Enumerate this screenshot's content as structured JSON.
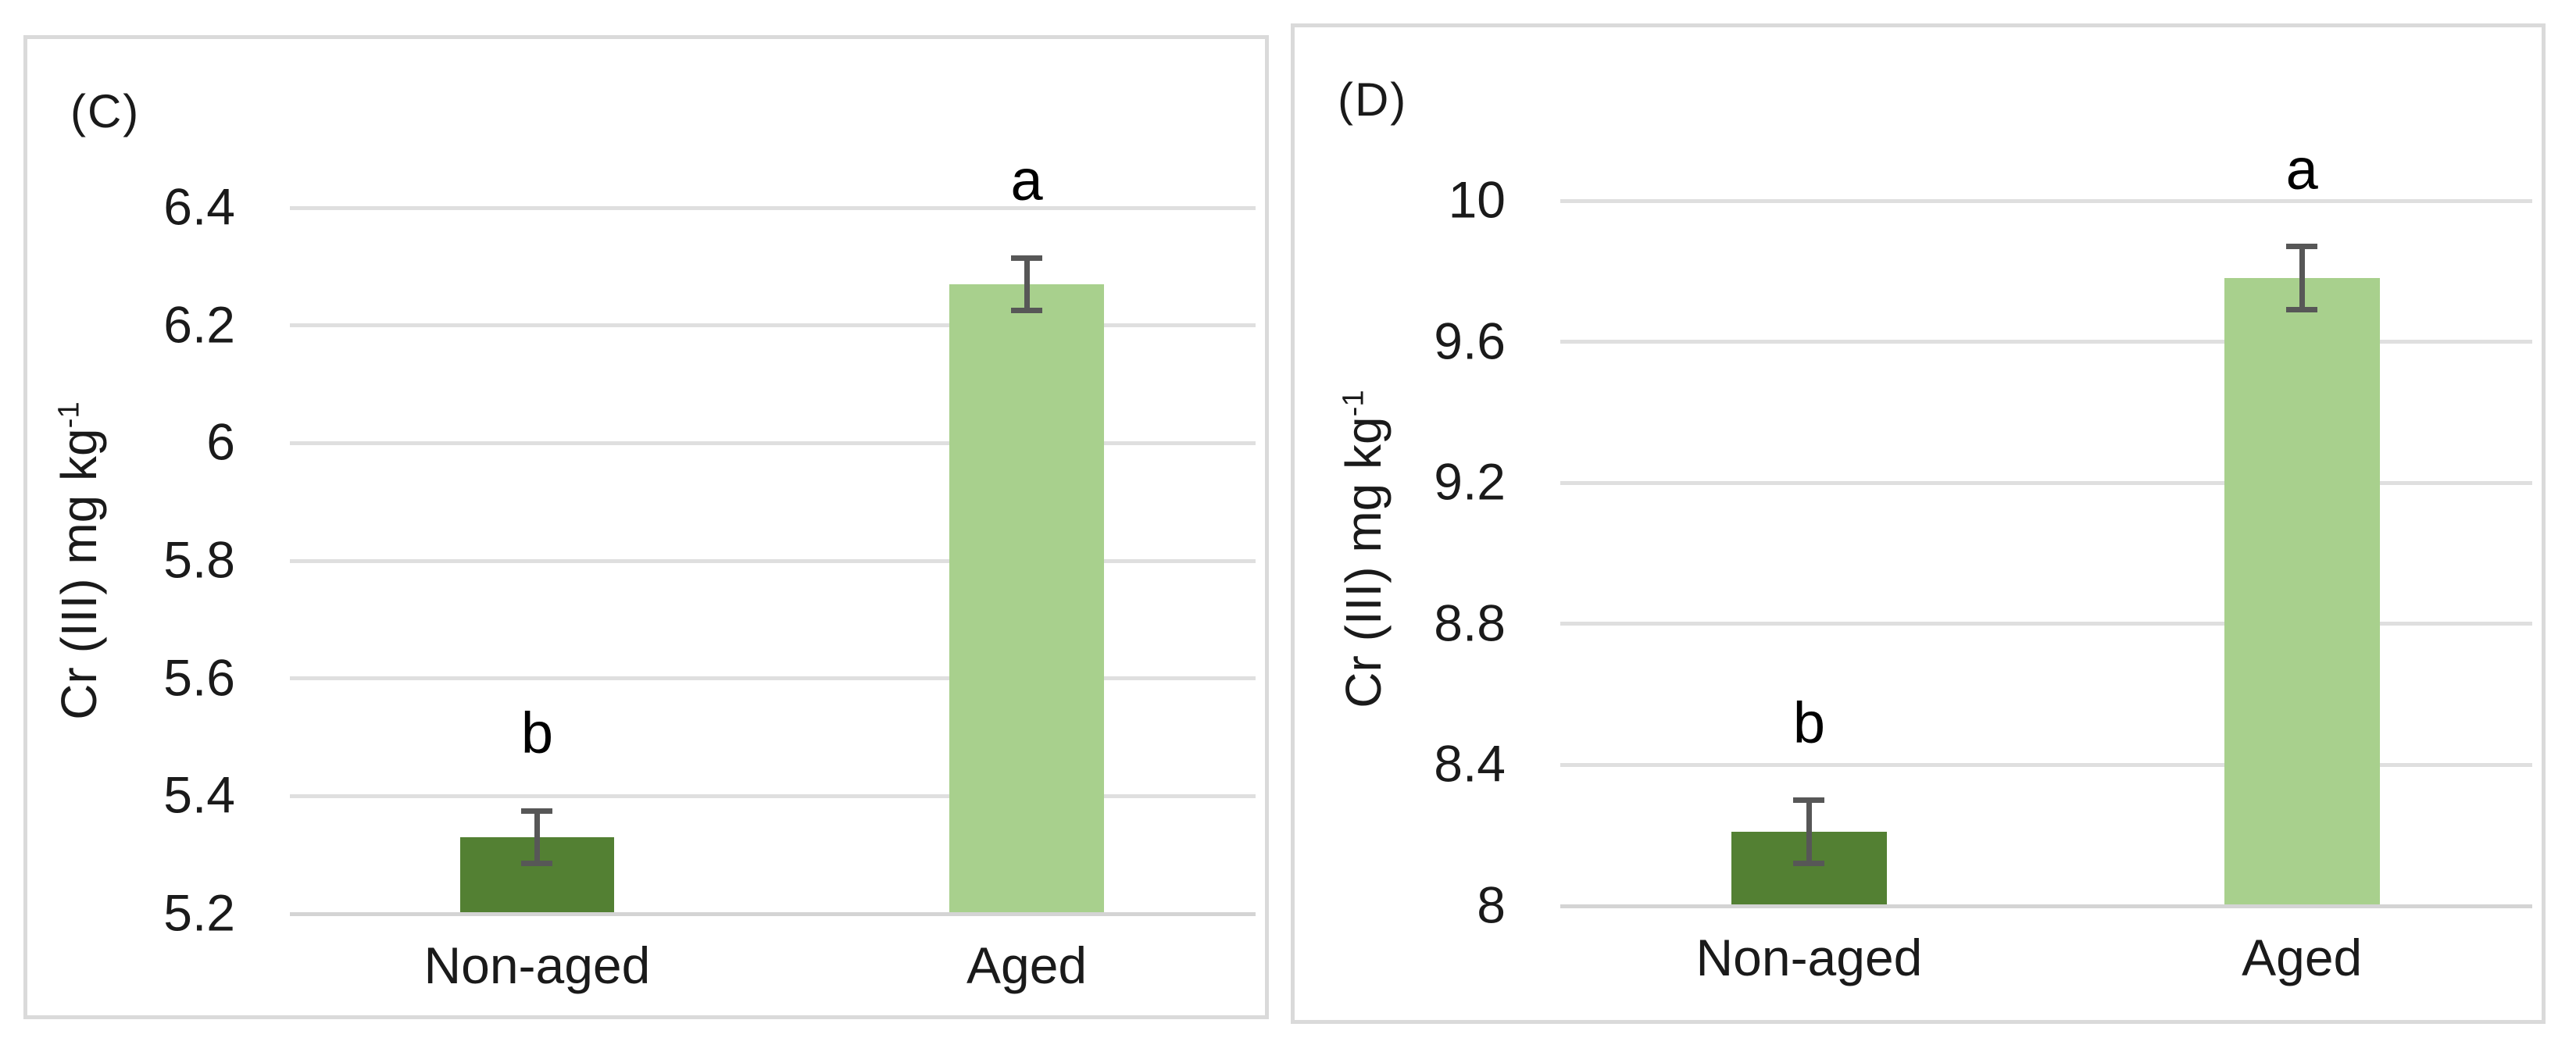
{
  "figure": {
    "background": "#ffffff",
    "panel_border_color": "#dadada",
    "gridline_color": "#dfdfdf",
    "axis_line_color": "#d4d4d4",
    "text_color": "#1a1a1a"
  },
  "chart_data": [
    {
      "type": "bar",
      "panel_label": "(C)",
      "ylabel": "Cr (III) mg kg⁻¹",
      "ylabel_base": "Cr (III) mg kg",
      "ylabel_exp": "-1",
      "xlabel": "",
      "categories": [
        "Non-aged",
        "Aged"
      ],
      "values": [
        5.33,
        6.27
      ],
      "errors": [
        0.045,
        0.045
      ],
      "sig_letters": [
        "b",
        "a"
      ],
      "bar_colors": [
        "#538033",
        "#a8d08d"
      ],
      "error_bar_color": "#575757",
      "ylim": [
        5.2,
        6.4
      ],
      "yticks": [
        5.2,
        5.4,
        5.6,
        5.8,
        6,
        6.2,
        6.4
      ],
      "grid": true,
      "legend": "none",
      "layout": {
        "bar_centers_pct": [
          25.6,
          76.3
        ],
        "bar_width_pct": 16
      }
    },
    {
      "type": "bar",
      "panel_label": "(D)",
      "ylabel": "Cr (III) mg kg⁻¹",
      "ylabel_base": "Cr (III) mg kg",
      "ylabel_exp": "-1",
      "xlabel": "",
      "categories": [
        "Non-aged",
        "Aged"
      ],
      "values": [
        8.21,
        9.78
      ],
      "errors": [
        0.09,
        0.09
      ],
      "sig_letters": [
        "b",
        "a"
      ],
      "bar_colors": [
        "#538033",
        "#a8d08d"
      ],
      "error_bar_color": "#575757",
      "ylim": [
        8,
        10
      ],
      "yticks": [
        8,
        8.4,
        8.8,
        9.2,
        9.6,
        10
      ],
      "grid": true,
      "legend": "none",
      "layout": {
        "bar_centers_pct": [
          25.6,
          76.3
        ],
        "bar_width_pct": 16
      }
    }
  ]
}
